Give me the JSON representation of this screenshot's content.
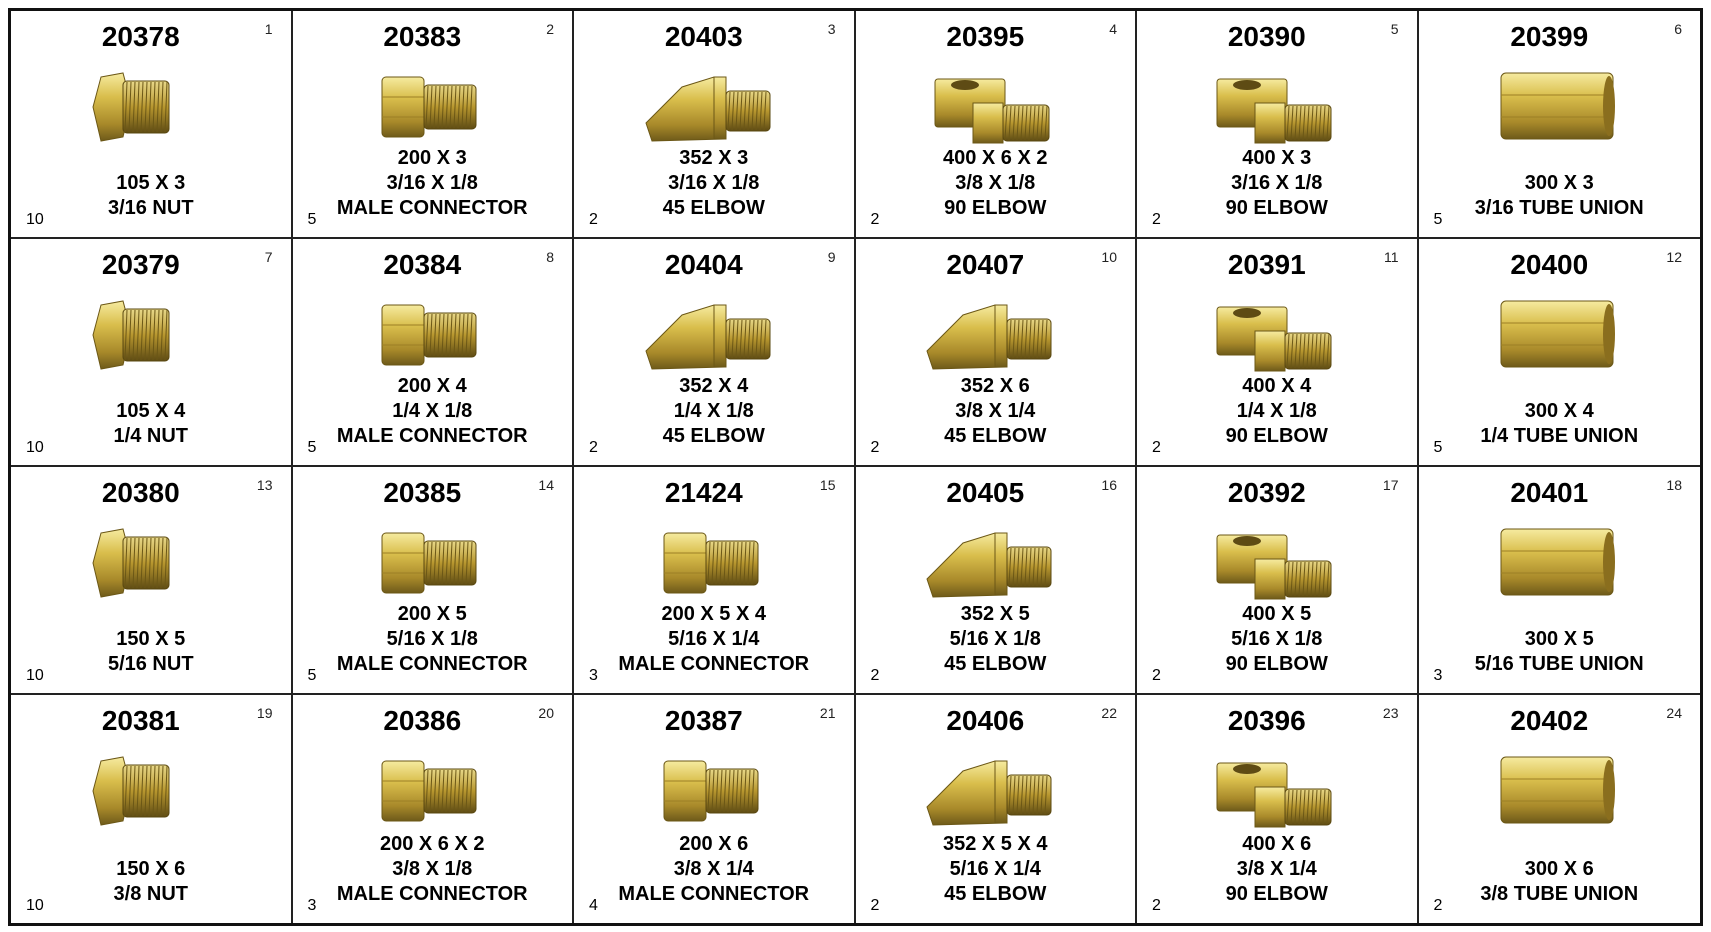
{
  "cells": [
    {
      "part": "20378",
      "index": 1,
      "lines": [
        "105 X 3",
        "3/16 NUT"
      ],
      "qty": 10
    },
    {
      "part": "20383",
      "index": 2,
      "lines": [
        "200 X 3",
        "3/16 X 1/8",
        "MALE CONNECTOR"
      ],
      "qty": 5
    },
    {
      "part": "20403",
      "index": 3,
      "lines": [
        "352 X 3",
        "3/16 X 1/8",
        "45 ELBOW"
      ],
      "qty": 2
    },
    {
      "part": "20395",
      "index": 4,
      "lines": [
        "400 X 6 X 2",
        "3/8 X 1/8",
        "90 ELBOW"
      ],
      "qty": 2
    },
    {
      "part": "20390",
      "index": 5,
      "lines": [
        "400 X 3",
        "3/16 X 1/8",
        "90 ELBOW"
      ],
      "qty": 2
    },
    {
      "part": "20399",
      "index": 6,
      "lines": [
        "300 X 3",
        "3/16 TUBE UNION"
      ],
      "qty": 5
    },
    {
      "part": "20379",
      "index": 7,
      "lines": [
        "105 X 4",
        "1/4 NUT"
      ],
      "qty": 10
    },
    {
      "part": "20384",
      "index": 8,
      "lines": [
        "200 X 4",
        "1/4 X 1/8",
        "MALE CONNECTOR"
      ],
      "qty": 5
    },
    {
      "part": "20404",
      "index": 9,
      "lines": [
        "352 X 4",
        "1/4 X 1/8",
        "45 ELBOW"
      ],
      "qty": 2
    },
    {
      "part": "20407",
      "index": 10,
      "lines": [
        "352 X 6",
        "3/8 X 1/4",
        "45 ELBOW"
      ],
      "qty": 2
    },
    {
      "part": "20391",
      "index": 11,
      "lines": [
        "400 X 4",
        "1/4 X 1/8",
        "90 ELBOW"
      ],
      "qty": 2
    },
    {
      "part": "20400",
      "index": 12,
      "lines": [
        "300 X 4",
        "1/4 TUBE UNION"
      ],
      "qty": 5
    },
    {
      "part": "20380",
      "index": 13,
      "lines": [
        "150 X 5",
        "5/16 NUT"
      ],
      "qty": 10
    },
    {
      "part": "20385",
      "index": 14,
      "lines": [
        "200 X 5",
        "5/16 X 1/8",
        "MALE CONNECTOR"
      ],
      "qty": 5
    },
    {
      "part": "21424",
      "index": 15,
      "lines": [
        "200 X 5 X 4",
        "5/16 X 1/4",
        "MALE CONNECTOR"
      ],
      "qty": 3
    },
    {
      "part": "20405",
      "index": 16,
      "lines": [
        "352 X 5",
        "5/16 X 1/8",
        "45 ELBOW"
      ],
      "qty": 2
    },
    {
      "part": "20392",
      "index": 17,
      "lines": [
        "400 X 5",
        "5/16 X 1/8",
        "90 ELBOW"
      ],
      "qty": 2
    },
    {
      "part": "20401",
      "index": 18,
      "lines": [
        "300 X 5",
        "5/16 TUBE UNION"
      ],
      "qty": 3
    },
    {
      "part": "20381",
      "index": 19,
      "lines": [
        "150 X 6",
        "3/8 NUT"
      ],
      "qty": 10
    },
    {
      "part": "20386",
      "index": 20,
      "lines": [
        "200 X 6 X 2",
        "3/8 X 1/8",
        "MALE CONNECTOR"
      ],
      "qty": 3
    },
    {
      "part": "20387",
      "index": 21,
      "lines": [
        "200 X 6",
        "3/8 X 1/4",
        "MALE CONNECTOR"
      ],
      "qty": 4
    },
    {
      "part": "20406",
      "index": 22,
      "lines": [
        "352 X 5 X 4",
        "5/16 X 1/4",
        "45  ELBOW"
      ],
      "qty": 2
    },
    {
      "part": "20396",
      "index": 23,
      "lines": [
        "400 X 6",
        "3/8 X 1/4",
        "90 ELBOW"
      ],
      "qty": 2
    },
    {
      "part": "20402",
      "index": 24,
      "lines": [
        "300 X 6",
        "3/8 TUBE UNION"
      ],
      "qty": 2
    }
  ]
}
